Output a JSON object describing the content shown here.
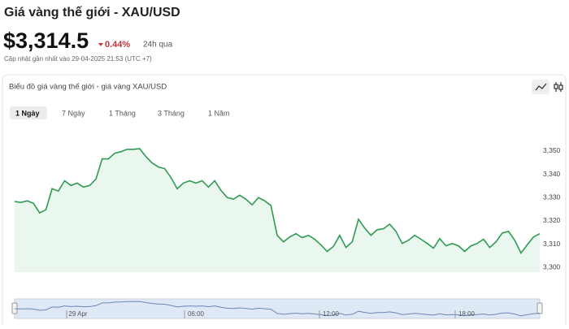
{
  "header": {
    "title": "Giá vàng thế giới - XAU/USD",
    "price": "$3,314.5",
    "change": "0.44%",
    "period": "24h qua",
    "updated": "Cập nhật gần nhất vào 29-04-2025 21:53 (UTC +7)"
  },
  "card": {
    "title": "Biểu đồ giá vàng thế giới - giá vàng XAU/USD",
    "tabs": [
      "1 Ngày",
      "7 Ngày",
      "1 Tháng",
      "3 Tháng",
      "1 Năm"
    ],
    "selected_tab": 0
  },
  "navigator": {
    "labels": [
      "29 Apr",
      "06:00",
      "12:00",
      "18:00"
    ]
  },
  "chart_data": {
    "type": "line",
    "color": "#2f9a52",
    "area_color": "#eaf7ee",
    "values": [
      3328.3,
      3327.9,
      3328.6,
      3327.6,
      3323.4,
      3324.8,
      3333.8,
      3332.8,
      3337.2,
      3335.2,
      3336.2,
      3334.5,
      3335.2,
      3337.9,
      3346.6,
      3346.6,
      3349.0,
      3349.7,
      3350.7,
      3350.7,
      3351.0,
      3347.6,
      3344.8,
      3343.1,
      3342.4,
      3338.6,
      3333.8,
      3336.2,
      3337.2,
      3336.2,
      3337.2,
      3334.5,
      3337.2,
      3333.1,
      3330.0,
      3329.3,
      3331.0,
      3329.3,
      3326.9,
      3330.0,
      3328.6,
      3326.6,
      3313.8,
      3311.0,
      3313.1,
      3314.5,
      3312.8,
      3313.8,
      3312.1,
      3309.7,
      3306.9,
      3309.0,
      3313.8,
      3308.6,
      3311.0,
      3320.7,
      3316.9,
      3313.8,
      3316.2,
      3316.6,
      3318.6,
      3315.5,
      3310.3,
      3311.7,
      3313.8,
      3312.1,
      3310.3,
      3308.3,
      3312.4,
      3309.3,
      3310.3,
      3309.3,
      3306.9,
      3309.3,
      3310.3,
      3312.1,
      3308.6,
      3311.0,
      3314.8,
      3315.5,
      3311.7,
      3306.2,
      3309.7,
      3313.1,
      3314.5
    ],
    "ylim": [
      3298,
      3359
    ],
    "yticks": [
      {
        "value": 3300,
        "label": "3,300"
      },
      {
        "value": 3310,
        "label": "3,310"
      },
      {
        "value": 3320,
        "label": "3,320"
      },
      {
        "value": 3330,
        "label": "3,330"
      },
      {
        "value": 3340,
        "label": "3,340"
      },
      {
        "value": 3350,
        "label": "3,350"
      }
    ],
    "grid": false
  }
}
